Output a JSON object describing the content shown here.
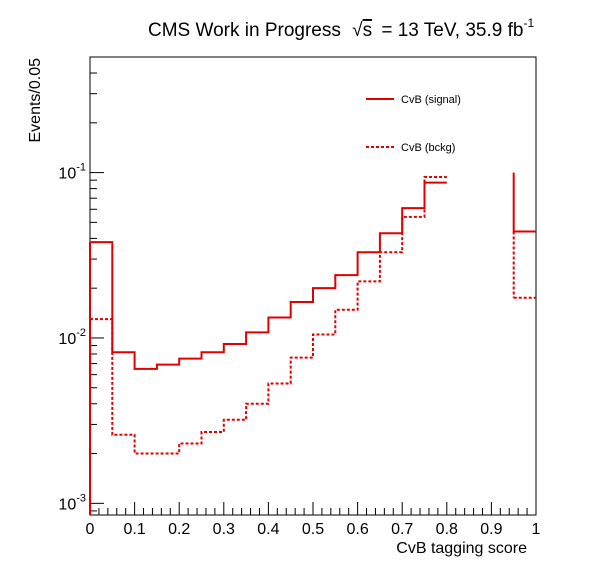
{
  "chart_data": {
    "type": "line",
    "style": "step-histogram",
    "title": {
      "prefix": "CMS Work in Progress",
      "sqrt_symbol": "√",
      "energy_var": "s",
      "energy_text": "= 13 TeV, 35.9 fb",
      "lumi_exponent": "-1"
    },
    "xlabel": "CvB tagging score",
    "ylabel": "Events/0.05",
    "xlim": [
      0,
      1
    ],
    "ylim": [
      0.00085,
      0.5
    ],
    "yscale": "log",
    "grid": false,
    "legend_position": "top-right",
    "x_ticks": [
      {
        "value": 0,
        "label": "0"
      },
      {
        "value": 0.1,
        "label": "0.1"
      },
      {
        "value": 0.2,
        "label": "0.2"
      },
      {
        "value": 0.3,
        "label": "0.3"
      },
      {
        "value": 0.4,
        "label": "0.4"
      },
      {
        "value": 0.5,
        "label": "0.5"
      },
      {
        "value": 0.6,
        "label": "0.6"
      },
      {
        "value": 0.7,
        "label": "0.7"
      },
      {
        "value": 0.8,
        "label": "0.8"
      },
      {
        "value": 0.9,
        "label": "0.9"
      },
      {
        "value": 1,
        "label": "1"
      }
    ],
    "y_ticks": [
      {
        "value": 0.001,
        "base": "10",
        "exponent": "-3"
      },
      {
        "value": 0.01,
        "base": "10",
        "exponent": "-2"
      },
      {
        "value": 0.1,
        "base": "10",
        "exponent": "-1"
      }
    ],
    "bin_width": 0.05,
    "bin_low_edges": [
      0,
      0.05,
      0.1,
      0.15,
      0.2,
      0.25,
      0.3,
      0.35,
      0.4,
      0.45,
      0.5,
      0.55,
      0.6,
      0.65,
      0.7,
      0.75,
      0.95
    ],
    "series": [
      {
        "name": "CvB (signal)",
        "color": "#e00000",
        "line_style": "solid",
        "values": [
          0.038,
          0.0082,
          0.0065,
          0.0069,
          0.0075,
          0.0082,
          0.0092,
          0.0108,
          0.0133,
          0.0165,
          0.02,
          0.024,
          0.033,
          0.043,
          0.061,
          0.087,
          0.044
        ]
      },
      {
        "name": "CvB (bckg)",
        "color": "#e00000",
        "line_style": "dashed",
        "values": [
          0.013,
          0.0026,
          0.002,
          0.002,
          0.0023,
          0.0027,
          0.0032,
          0.004,
          0.0053,
          0.0076,
          0.0105,
          0.0148,
          0.022,
          0.033,
          0.054,
          0.094,
          0.0175
        ]
      }
    ]
  }
}
